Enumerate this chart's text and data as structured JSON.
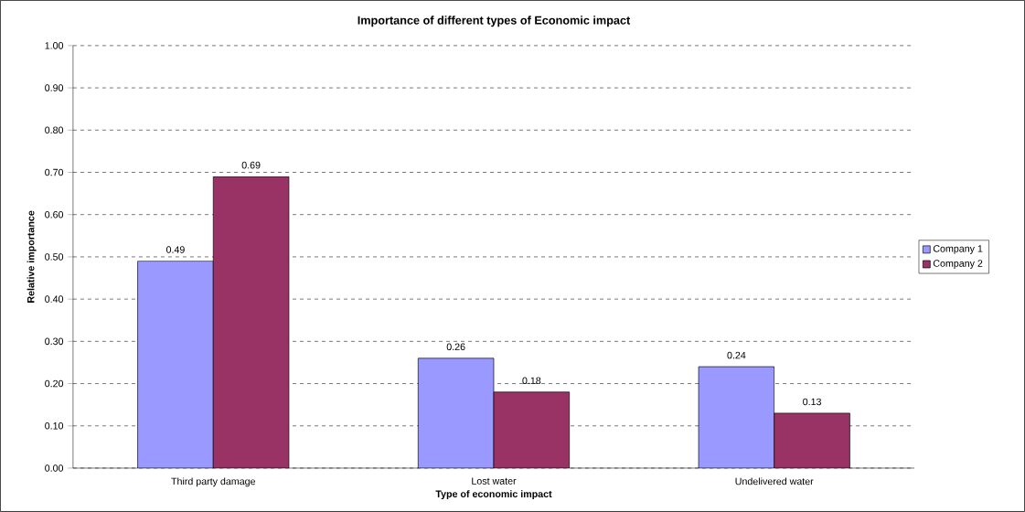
{
  "chart_data": {
    "type": "bar",
    "title": "Importance of different types of Economic impact",
    "xlabel": "Type of economic impact",
    "ylabel": "Relative importance",
    "categories": [
      "Third party damage",
      "Lost water",
      "Undelivered water"
    ],
    "series": [
      {
        "name": "Company 1",
        "color": "#9999ff",
        "values": [
          0.49,
          0.26,
          0.24
        ]
      },
      {
        "name": "Company 2",
        "color": "#993366",
        "values": [
          0.69,
          0.18,
          0.13
        ]
      }
    ],
    "ylim": [
      0,
      1
    ],
    "yticks": [
      {
        "value": 0,
        "label": "0.00"
      },
      {
        "value": 0.1,
        "label": "0.10"
      },
      {
        "value": 0.2,
        "label": "0.20"
      },
      {
        "value": 0.3,
        "label": "0.30"
      },
      {
        "value": 0.4,
        "label": "0.40"
      },
      {
        "value": 0.5,
        "label": "0.50"
      },
      {
        "value": 0.6,
        "label": "0.60"
      },
      {
        "value": 0.7,
        "label": "0.70"
      },
      {
        "value": 0.8,
        "label": "0.80"
      },
      {
        "value": 0.9,
        "label": "0.90"
      },
      {
        "value": 1,
        "label": "1.00"
      }
    ],
    "grid": "y",
    "legend": "right",
    "data_labels": true
  }
}
